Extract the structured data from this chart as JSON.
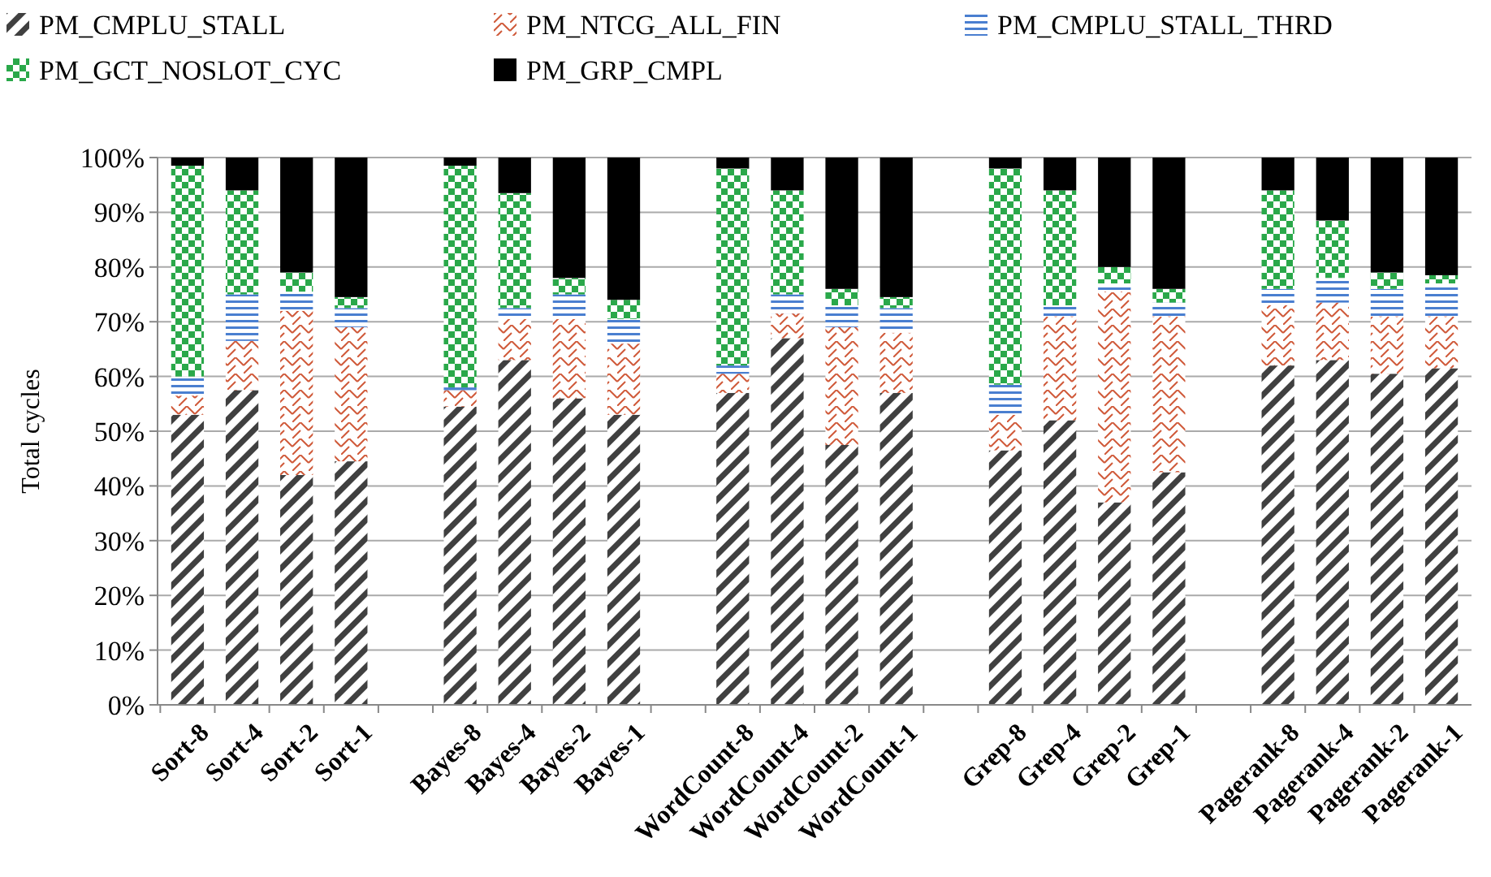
{
  "chart_data": {
    "type": "bar",
    "stacked": true,
    "ylabel": "Total cycles",
    "ylim": [
      0,
      100
    ],
    "yticks": [
      {
        "value": 0,
        "label": "0%"
      },
      {
        "value": 10,
        "label": "10%"
      },
      {
        "value": 20,
        "label": "20%"
      },
      {
        "value": 30,
        "label": "30%"
      },
      {
        "value": 40,
        "label": "40%"
      },
      {
        "value": 50,
        "label": "50%"
      },
      {
        "value": 60,
        "label": "60%"
      },
      {
        "value": 70,
        "label": "70%"
      },
      {
        "value": 80,
        "label": "80%"
      },
      {
        "value": 90,
        "label": "90%"
      },
      {
        "value": 100,
        "label": "100%"
      }
    ],
    "grid": "y",
    "legend": "top",
    "categories": [
      "Sort-8",
      "Sort-4",
      "Sort-2",
      "Sort-1",
      null,
      "Bayes-8",
      "Bayes-4",
      "Bayes-2",
      "Bayes-1",
      null,
      "WordCount-8",
      "WordCount-4",
      "WordCount-2",
      "WordCount-1",
      null,
      "Grep-8",
      "Grep-4",
      "Grep-2",
      "Grep-1",
      null,
      "Pagerank-8",
      "Pagerank-4",
      "Pagerank-2",
      "Pagerank-1"
    ],
    "series": [
      {
        "name": "PM_CMPLU_STALL",
        "color": "#404040",
        "values": [
          53,
          57.5,
          42,
          44.5,
          null,
          54.5,
          63,
          56,
          53,
          null,
          57,
          67,
          47.5,
          57,
          null,
          46.5,
          52,
          37,
          42.5,
          null,
          62,
          63,
          60.5,
          61.5
        ]
      },
      {
        "name": "PM_NTCG_ALL_FIN",
        "color": "#d05a3a",
        "values": [
          3.5,
          9,
          30,
          24.5,
          null,
          3,
          7.5,
          14.5,
          13,
          null,
          3.5,
          4.5,
          21.5,
          11,
          null,
          6.5,
          19,
          38.5,
          28.5,
          null,
          11,
          10.5,
          10.5,
          9.5
        ]
      },
      {
        "name": "PM_CMPLU_STALL_THRD",
        "color": "#4a7fd0",
        "values": [
          3.5,
          8.5,
          3.5,
          3.5,
          null,
          0.5,
          2,
          4.5,
          4.5,
          null,
          1.5,
          3.5,
          4,
          4.5,
          null,
          5.5,
          2,
          1.5,
          2.5,
          null,
          3,
          4.5,
          5,
          6
        ]
      },
      {
        "name": "PM_GCT_NOSLOT_CYC",
        "color": "#2aa84a",
        "values": [
          38.5,
          19,
          3.5,
          2,
          null,
          40.5,
          21,
          3,
          3.5,
          null,
          36,
          19,
          3,
          2,
          null,
          39.5,
          21,
          3,
          2.5,
          null,
          18,
          10.5,
          3,
          1.5
        ]
      },
      {
        "name": "PM_GRP_CMPL",
        "color": "#000000",
        "values": [
          1.5,
          6,
          21,
          25.5,
          null,
          1.5,
          6.5,
          22,
          26,
          null,
          2,
          6,
          24,
          25.5,
          null,
          2,
          6,
          20,
          24,
          null,
          6,
          11.5,
          21,
          21.5
        ]
      }
    ]
  }
}
